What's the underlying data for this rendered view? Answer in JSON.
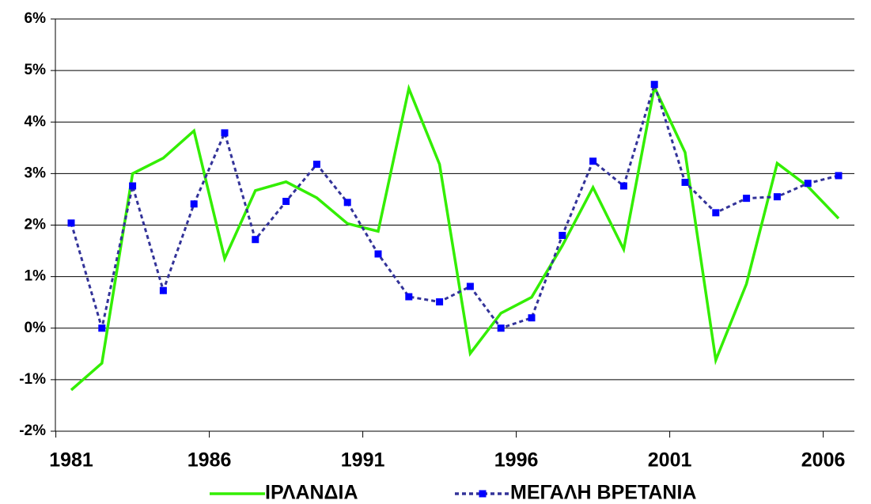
{
  "chart_data": {
    "type": "line",
    "categories": [
      "1981",
      null,
      null,
      null,
      null,
      "1986",
      null,
      null,
      null,
      null,
      "1991",
      null,
      null,
      null,
      null,
      "1996",
      null,
      null,
      null,
      null,
      "2001",
      null,
      null,
      null,
      null,
      "2006"
    ],
    "series": [
      {
        "name": "ΙΡΛΑΝΔΙΑ",
        "color": "#33ee00",
        "style": "solid",
        "markers": false,
        "values": [
          -1.2,
          -0.68,
          3.0,
          3.3,
          3.83,
          1.35,
          2.67,
          2.84,
          2.53,
          2.03,
          1.88,
          4.65,
          3.18,
          -0.49,
          0.29,
          0.6,
          1.6,
          2.73,
          1.53,
          4.68,
          3.41,
          -0.62,
          0.86,
          3.2,
          2.75,
          2.13
        ]
      },
      {
        "name": "ΜΕΓΑΛΗ ΒΡΕΤΑΝΙΑ",
        "color": "#333399",
        "marker_color": "#0000ff",
        "style": "dashed",
        "markers": true,
        "values": [
          2.04,
          0,
          2.76,
          0.73,
          2.41,
          3.79,
          1.72,
          2.46,
          3.18,
          2.44,
          1.44,
          0.61,
          0.51,
          0.81,
          0,
          0.2,
          1.8,
          3.24,
          2.76,
          4.73,
          2.83,
          2.24,
          2.52,
          2.55,
          2.81,
          2.96
        ]
      }
    ],
    "ylim": [
      -2,
      6
    ],
    "yticks": [
      {
        "value": -2,
        "label": "-2%"
      },
      {
        "value": -1,
        "label": "-1%"
      },
      {
        "value": 0,
        "label": "0%"
      },
      {
        "value": 1,
        "label": "1%"
      },
      {
        "value": 2,
        "label": "2%"
      },
      {
        "value": 3,
        "label": "3%"
      },
      {
        "value": 4,
        "label": "4%"
      },
      {
        "value": 5,
        "label": "5%"
      },
      {
        "value": 6,
        "label": "6%"
      }
    ],
    "grid": true,
    "legend": "bottom"
  }
}
